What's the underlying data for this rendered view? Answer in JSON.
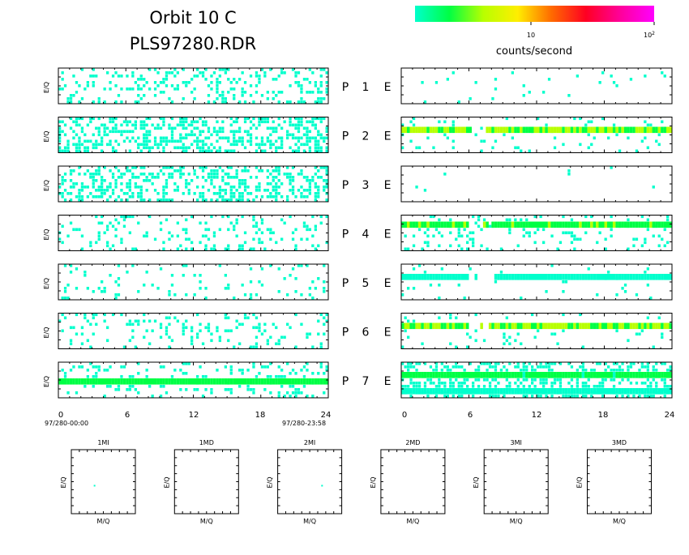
{
  "header": {
    "title_line1": "Orbit  10  C",
    "title_line2": "PLS97280.RDR"
  },
  "colorbar": {
    "stops": [
      "#00ffcc",
      "#00ff44",
      "#b8ff00",
      "#ffee00",
      "#ff6a00",
      "#ff0022",
      "#ff0099",
      "#ff00ff"
    ],
    "tick_10": "10",
    "tick_100_base": "10",
    "tick_100_exp": "2",
    "label": "counts/second"
  },
  "panel_rows": [
    {
      "left_label": "P",
      "num": "1",
      "right_label": "E"
    },
    {
      "left_label": "P",
      "num": "2",
      "right_label": "E"
    },
    {
      "left_label": "P",
      "num": "3",
      "right_label": "E"
    },
    {
      "left_label": "P",
      "num": "4",
      "right_label": "E"
    },
    {
      "left_label": "P",
      "num": "5",
      "right_label": "E"
    },
    {
      "left_label": "P",
      "num": "6",
      "right_label": "E"
    },
    {
      "left_label": "P",
      "num": "7",
      "right_label": "E"
    }
  ],
  "y_axis_label": "E/Q",
  "x_ticks": [
    "0",
    "6",
    "12",
    "18",
    "24"
  ],
  "time_start": "97/280-00:00",
  "time_end": "97/280-23:58",
  "small_panels": [
    {
      "title": "1MI",
      "xlabel": "M/Q",
      "ylabel": "E/Q"
    },
    {
      "title": "1MD",
      "xlabel": "M/Q",
      "ylabel": "E/Q"
    },
    {
      "title": "2MI",
      "xlabel": "M/Q",
      "ylabel": "E/Q"
    },
    {
      "title": "2MD",
      "xlabel": "M/Q",
      "ylabel": "E/Q"
    },
    {
      "title": "3MI",
      "xlabel": "M/Q",
      "ylabel": "E/Q"
    },
    {
      "title": "3MD",
      "xlabel": "M/Q",
      "ylabel": "E/Q"
    }
  ],
  "chart_data": {
    "type": "heatmap",
    "x_range_hours": [
      0,
      24
    ],
    "color_scale": "log",
    "color_range": [
      1,
      100
    ],
    "panels": {
      "P": [
        {
          "channel": 1,
          "density": 0.22,
          "bands": []
        },
        {
          "channel": 2,
          "density": 0.42,
          "bands": []
        },
        {
          "channel": 3,
          "density": 0.35,
          "bands": []
        },
        {
          "channel": 4,
          "density": 0.15,
          "bands": []
        },
        {
          "channel": 5,
          "density": 0.08,
          "bands": []
        },
        {
          "channel": 6,
          "density": 0.13,
          "bands": []
        },
        {
          "channel": 7,
          "density": 0.15,
          "bands": [
            {
              "row": 0.45,
              "hot": 0.6
            }
          ]
        }
      ],
      "E": [
        {
          "channel": 1,
          "density": 0.02,
          "bands": []
        },
        {
          "channel": 2,
          "density": 0.06,
          "bands": [
            {
              "row": 0.28,
              "hot": 0.9,
              "gap": [
                5.8,
                7.8
              ]
            }
          ]
        },
        {
          "channel": 3,
          "density": 0.01,
          "bands": []
        },
        {
          "channel": 4,
          "density": 0.14,
          "bands": [
            {
              "row": 0.22,
              "hot": 0.7,
              "gap": [
                5.8,
                7.8
              ]
            }
          ]
        },
        {
          "channel": 5,
          "density": 0.03,
          "bands": [
            {
              "row": 0.3,
              "hot": 0.3,
              "gap": [
                6.0,
                8.0
              ]
            }
          ]
        },
        {
          "channel": 6,
          "density": 0.05,
          "bands": [
            {
              "row": 0.28,
              "hot": 0.9,
              "gap": [
                5.8,
                7.8
              ]
            }
          ]
        },
        {
          "channel": 7,
          "density": 0.4,
          "bands": [
            {
              "row": 0.3,
              "hot": 0.55
            },
            {
              "row": 0.75,
              "hot": 0.3
            }
          ]
        }
      ]
    },
    "small_panel_points": [
      {
        "panel": "1MI",
        "mq": 0.35,
        "eq": 0.55
      },
      {
        "panel": "2MI",
        "mq": 0.68,
        "eq": 0.55
      }
    ]
  }
}
